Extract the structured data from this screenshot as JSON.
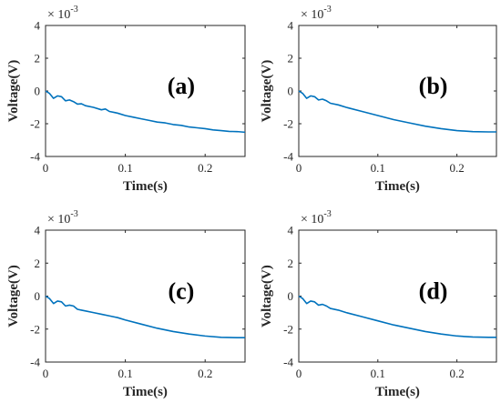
{
  "chart_data": [
    {
      "type": "line",
      "panel_label": "(a)",
      "xlabel": "Time(s)",
      "ylabel": "Voltage(V)",
      "exponent_base": "× 10",
      "exponent_power": "-3",
      "xlim": [
        0,
        0.25
      ],
      "ylim": [
        -4,
        4
      ],
      "xticks": [
        "0",
        "0.1",
        "0.2"
      ],
      "yticks": [
        "4",
        "2",
        "0",
        "-2",
        "-4"
      ],
      "line_color": "#0072BD",
      "series": [
        {
          "x": [
            0,
            0.005,
            0.01,
            0.015,
            0.02,
            0.025,
            0.03,
            0.035,
            0.04,
            0.045,
            0.05,
            0.06,
            0.07,
            0.075,
            0.08,
            0.09,
            0.1,
            0.11,
            0.12,
            0.13,
            0.14,
            0.15,
            0.16,
            0.17,
            0.18,
            0.19,
            0.2,
            0.21,
            0.22,
            0.23,
            0.24,
            0.25
          ],
          "y": [
            0.0,
            -0.15,
            -0.45,
            -0.3,
            -0.35,
            -0.6,
            -0.55,
            -0.65,
            -0.8,
            -0.78,
            -0.9,
            -1.0,
            -1.15,
            -1.1,
            -1.25,
            -1.35,
            -1.5,
            -1.6,
            -1.7,
            -1.8,
            -1.9,
            -1.95,
            -2.05,
            -2.1,
            -2.2,
            -2.25,
            -2.3,
            -2.38,
            -2.42,
            -2.47,
            -2.48,
            -2.52
          ]
        }
      ]
    },
    {
      "type": "line",
      "panel_label": "(b)",
      "xlabel": "Time(s)",
      "ylabel": "Voltage(V)",
      "exponent_base": "× 10",
      "exponent_power": "-3",
      "xlim": [
        0,
        0.25
      ],
      "ylim": [
        -4,
        4
      ],
      "xticks": [
        "0",
        "0.1",
        "0.2"
      ],
      "yticks": [
        "4",
        "2",
        "0",
        "-2",
        "-4"
      ],
      "line_color": "#0072BD",
      "series": [
        {
          "x": [
            0,
            0.005,
            0.01,
            0.015,
            0.02,
            0.025,
            0.03,
            0.035,
            0.04,
            0.05,
            0.06,
            0.08,
            0.1,
            0.12,
            0.14,
            0.16,
            0.18,
            0.2,
            0.22,
            0.24,
            0.25
          ],
          "y": [
            0.0,
            -0.15,
            -0.45,
            -0.3,
            -0.35,
            -0.55,
            -0.5,
            -0.6,
            -0.75,
            -0.85,
            -1.0,
            -1.25,
            -1.5,
            -1.75,
            -1.95,
            -2.15,
            -2.3,
            -2.42,
            -2.48,
            -2.5,
            -2.5
          ]
        }
      ]
    },
    {
      "type": "line",
      "panel_label": "(c)",
      "xlabel": "Time(s)",
      "ylabel": "Voltage(V)",
      "exponent_base": "× 10",
      "exponent_power": "-3",
      "xlim": [
        0,
        0.25
      ],
      "ylim": [
        -4,
        4
      ],
      "xticks": [
        "0",
        "0.1",
        "0.2"
      ],
      "yticks": [
        "4",
        "2",
        "0",
        "-2",
        "-4"
      ],
      "line_color": "#0072BD",
      "series": [
        {
          "x": [
            0,
            0.005,
            0.01,
            0.015,
            0.02,
            0.025,
            0.03,
            0.035,
            0.04,
            0.045,
            0.05,
            0.06,
            0.07,
            0.08,
            0.09,
            0.1,
            0.12,
            0.14,
            0.16,
            0.18,
            0.2,
            0.22,
            0.24,
            0.25
          ],
          "y": [
            0.0,
            -0.15,
            -0.45,
            -0.3,
            -0.35,
            -0.6,
            -0.55,
            -0.6,
            -0.8,
            -0.85,
            -0.9,
            -1.0,
            -1.1,
            -1.2,
            -1.3,
            -1.45,
            -1.7,
            -1.95,
            -2.15,
            -2.3,
            -2.42,
            -2.5,
            -2.52,
            -2.52
          ]
        }
      ]
    },
    {
      "type": "line",
      "panel_label": "(d)",
      "xlabel": "Time(s)",
      "ylabel": "Voltage(V)",
      "exponent_base": "× 10",
      "exponent_power": "-3",
      "xlim": [
        0,
        0.25
      ],
      "ylim": [
        -4,
        4
      ],
      "xticks": [
        "0",
        "0.1",
        "0.2"
      ],
      "yticks": [
        "4",
        "2",
        "0",
        "-2",
        "-4"
      ],
      "line_color": "#0072BD",
      "series": [
        {
          "x": [
            0,
            0.005,
            0.01,
            0.015,
            0.02,
            0.025,
            0.03,
            0.035,
            0.04,
            0.05,
            0.06,
            0.08,
            0.1,
            0.12,
            0.14,
            0.16,
            0.18,
            0.2,
            0.22,
            0.24,
            0.25
          ],
          "y": [
            0.0,
            -0.15,
            -0.45,
            -0.3,
            -0.35,
            -0.55,
            -0.5,
            -0.6,
            -0.75,
            -0.85,
            -1.0,
            -1.25,
            -1.5,
            -1.75,
            -1.95,
            -2.15,
            -2.3,
            -2.42,
            -2.48,
            -2.5,
            -2.5
          ]
        }
      ]
    }
  ]
}
